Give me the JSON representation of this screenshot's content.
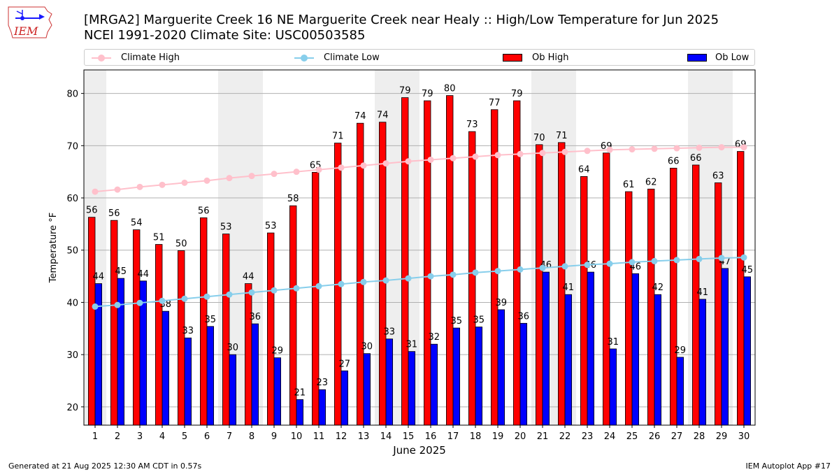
{
  "header": {
    "logo_text": "IEM",
    "title_line1": "[MRGA2] Marguerite Creek 16 NE Marguerite Creek near Healy :: High/Low Temperature for Jun 2025",
    "title_line2": "NCEI 1991-2020 Climate Site: USC00503585"
  },
  "legend": {
    "climate_high": "Climate High",
    "climate_low": "Climate Low",
    "ob_high": "Ob High",
    "ob_low": "Ob Low"
  },
  "colors": {
    "ob_high": "#ff0000",
    "ob_low": "#0000ff",
    "climate_high": "#ffc0cb",
    "climate_low": "#87ceeb",
    "weekend_shade": "#eeeeee",
    "grid": "#b0b0b0"
  },
  "chart_data": {
    "type": "bar",
    "xlabel": "June 2025",
    "ylabel": "Temperature °F",
    "ylim": [
      16.5,
      84.5
    ],
    "yticks": [
      20,
      30,
      40,
      50,
      60,
      70,
      80
    ],
    "grid": true,
    "legend_placement": "top",
    "categories": [
      1,
      2,
      3,
      4,
      5,
      6,
      7,
      8,
      9,
      10,
      11,
      12,
      13,
      14,
      15,
      16,
      17,
      18,
      19,
      20,
      21,
      22,
      23,
      24,
      25,
      26,
      27,
      28,
      29,
      30
    ],
    "series": [
      {
        "name": "Ob High",
        "kind": "bar",
        "values": [
          56.3,
          55.7,
          53.9,
          51.1,
          49.9,
          56.2,
          53.1,
          43.6,
          53.3,
          58.5,
          64.9,
          70.5,
          74.3,
          74.5,
          79.2,
          78.6,
          79.6,
          72.7,
          76.9,
          78.6,
          70.2,
          70.6,
          64.1,
          68.6,
          61.2,
          61.7,
          65.7,
          66.3,
          62.9,
          68.9
        ],
        "labels": [
          "56",
          "56",
          "54",
          "51",
          "50",
          "56",
          "53",
          "44",
          "53",
          "58",
          "65",
          "71",
          "74",
          "74",
          "79",
          "79",
          "80",
          "73",
          "77",
          "79",
          "70",
          "71",
          "64",
          "69",
          "61",
          "62",
          "66",
          "66",
          "63",
          "69"
        ]
      },
      {
        "name": "Ob Low",
        "kind": "bar",
        "values": [
          43.6,
          44.6,
          44.1,
          38.3,
          33.2,
          35.4,
          30.0,
          35.9,
          29.4,
          21.4,
          23.3,
          26.9,
          30.2,
          33.0,
          30.6,
          32.0,
          35.1,
          35.3,
          38.6,
          36.0,
          45.8,
          41.5,
          45.8,
          31.1,
          45.5,
          41.5,
          29.5,
          40.6,
          46.5,
          44.9
        ],
        "labels": [
          "44",
          "45",
          "44",
          "38",
          "33",
          "35",
          "30",
          "36",
          "29",
          "21",
          "23",
          "27",
          "30",
          "33",
          "31",
          "32",
          "35",
          "35",
          "39",
          "36",
          "46",
          "41",
          "46",
          "31",
          "46",
          "42",
          "29",
          "41",
          "47",
          "45"
        ]
      },
      {
        "name": "Climate High",
        "kind": "line",
        "values": [
          61.2,
          61.6,
          62.1,
          62.5,
          62.9,
          63.3,
          63.8,
          64.2,
          64.6,
          65.0,
          65.4,
          65.8,
          66.2,
          66.6,
          67.0,
          67.3,
          67.6,
          67.9,
          68.2,
          68.4,
          68.6,
          68.8,
          69.0,
          69.2,
          69.3,
          69.4,
          69.5,
          69.6,
          69.7,
          69.7
        ]
      },
      {
        "name": "Climate Low",
        "kind": "line",
        "values": [
          39.2,
          39.5,
          39.9,
          40.3,
          40.7,
          41.1,
          41.5,
          41.9,
          42.3,
          42.7,
          43.1,
          43.5,
          43.9,
          44.2,
          44.6,
          45.0,
          45.3,
          45.7,
          46.0,
          46.3,
          46.6,
          46.9,
          47.2,
          47.4,
          47.7,
          47.9,
          48.1,
          48.3,
          48.5,
          48.6
        ]
      }
    ],
    "weekends": [
      1,
      7,
      8,
      14,
      15,
      21,
      22,
      28,
      29
    ]
  },
  "footer": {
    "generated": "Generated at 21 Aug 2025 12:30 AM CDT in 0.57s",
    "app": "IEM Autoplot App #17"
  }
}
